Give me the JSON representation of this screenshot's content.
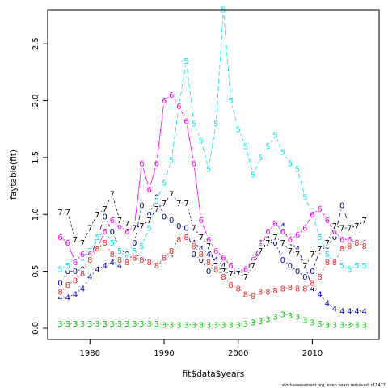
{
  "chart_data": {
    "type": "line",
    "xlabel": "fit$data$years",
    "ylabel": "faytable(fit)",
    "footnote": "stockassessment.org, even years removed, r11427",
    "xlim": [
      1974.3,
      2019
    ],
    "ylim": [
      -0.1,
      2.8
    ],
    "x_ticks": [
      1980,
      1990,
      2000,
      2010
    ],
    "y_ticks": [
      0.0,
      0.5,
      1.0,
      1.5,
      2.0,
      2.5
    ],
    "y_tick_labels": [
      "0.0",
      "0.5",
      "1.0",
      "1.5",
      "2.0",
      "2.5"
    ],
    "x": [
      1976,
      1977,
      1978,
      1979,
      1980,
      1981,
      1982,
      1983,
      1984,
      1985,
      1986,
      1987,
      1988,
      1989,
      1990,
      1991,
      1992,
      1993,
      1994,
      1995,
      1996,
      1997,
      1998,
      1999,
      2000,
      2001,
      2002,
      2003,
      2004,
      2005,
      2006,
      2007,
      2008,
      2009,
      2010,
      2011,
      2012,
      2013,
      2014,
      2015,
      2016,
      2017
    ],
    "series": [
      {
        "name": "0",
        "color": "#00008B",
        "dash": "6,3",
        "values": [
          0.4,
          0.5,
          0.5,
          0.52,
          0.6,
          0.8,
          0.98,
          0.85,
          0.7,
          0.65,
          0.75,
          1.08,
          1.0,
          1.15,
          0.98,
          0.95,
          0.9,
          0.88,
          0.65,
          0.6,
          0.5,
          0.5,
          0.48,
          0.5,
          0.48,
          0.5,
          0.58,
          0.7,
          0.75,
          0.75,
          0.6,
          0.55,
          0.5,
          0.45,
          0.5,
          0.68,
          0.72,
          0.8,
          1.08,
          0.9,
          0.9,
          0.95
        ]
      },
      {
        "name": "3",
        "color": "#00CD00",
        "dash": "2,2",
        "values": [
          0.04,
          0.04,
          0.04,
          0.04,
          0.04,
          0.04,
          0.04,
          0.04,
          0.04,
          0.04,
          0.04,
          0.04,
          0.04,
          0.04,
          0.03,
          0.03,
          0.03,
          0.03,
          0.03,
          0.03,
          0.03,
          0.03,
          0.03,
          0.03,
          0.03,
          0.04,
          0.05,
          0.06,
          0.08,
          0.1,
          0.12,
          0.11,
          0.1,
          0.07,
          0.05,
          0.04,
          0.03,
          0.03,
          0.03,
          0.03,
          0.03,
          0.03
        ]
      },
      {
        "name": "4",
        "color": "#0000CD",
        "dash": "8,2,2,2",
        "values": [
          0.27,
          0.27,
          0.3,
          0.35,
          0.45,
          0.52,
          0.55,
          0.58,
          0.55,
          0.6,
          0.65,
          0.62,
          0.58,
          0.55,
          0.6,
          0.65,
          0.8,
          0.78,
          0.75,
          0.7,
          0.65,
          0.6,
          0.55,
          0.5,
          0.5,
          0.52,
          0.58,
          0.75,
          0.8,
          0.9,
          0.9,
          0.75,
          0.7,
          0.55,
          0.35,
          0.3,
          0.22,
          0.17,
          0.15,
          0.15,
          0.15,
          0.15
        ]
      },
      {
        "name": "5",
        "color": "#00E5EE",
        "dash": "6,3",
        "values": [
          0.52,
          0.55,
          0.58,
          0.62,
          0.68,
          0.8,
          0.85,
          0.75,
          0.68,
          0.62,
          0.68,
          0.72,
          0.88,
          1.12,
          1.28,
          1.48,
          1.95,
          2.35,
          1.8,
          1.65,
          1.4,
          1.8,
          2.8,
          2.0,
          1.75,
          1.6,
          1.35,
          1.5,
          1.6,
          1.7,
          1.55,
          1.45,
          1.4,
          1.15,
          1.0,
          0.8,
          0.65,
          0.58,
          0.55,
          0.52,
          0.55,
          0.55
        ]
      },
      {
        "name": "6",
        "color": "#FF00FF",
        "dash": "",
        "values": [
          0.8,
          0.75,
          0.58,
          0.65,
          0.65,
          0.7,
          0.85,
          0.95,
          0.9,
          0.85,
          0.9,
          1.45,
          1.22,
          1.45,
          2.0,
          2.05,
          1.95,
          1.82,
          1.45,
          0.95,
          0.78,
          0.68,
          0.62,
          0.55,
          0.48,
          0.52,
          0.6,
          0.72,
          0.85,
          0.92,
          0.85,
          0.78,
          0.82,
          0.88,
          1.0,
          1.05,
          0.95,
          0.85,
          0.78,
          0.78,
          0.75,
          0.75
        ]
      },
      {
        "name": "7",
        "color": "#000000",
        "dash": "3,2",
        "values": [
          1.02,
          1.02,
          0.78,
          0.75,
          0.88,
          1.0,
          1.05,
          1.18,
          0.95,
          0.92,
          0.88,
          0.9,
          0.95,
          1.05,
          1.1,
          1.18,
          1.1,
          1.1,
          0.88,
          0.8,
          0.72,
          0.55,
          0.5,
          0.48,
          0.48,
          0.45,
          0.55,
          0.68,
          0.75,
          0.8,
          0.75,
          0.68,
          0.65,
          0.55,
          0.65,
          0.7,
          0.75,
          0.9,
          0.88,
          0.88,
          0.9,
          0.95
        ]
      },
      {
        "name": "8",
        "color": "#EE2C2C",
        "dash": "2,2",
        "values": [
          0.32,
          0.38,
          0.42,
          0.48,
          0.6,
          0.7,
          0.75,
          0.65,
          0.6,
          0.58,
          0.62,
          0.6,
          0.58,
          0.55,
          0.62,
          0.68,
          0.78,
          0.8,
          0.72,
          0.65,
          0.58,
          0.52,
          0.45,
          0.38,
          0.35,
          0.3,
          0.28,
          0.32,
          0.32,
          0.33,
          0.35,
          0.36,
          0.35,
          0.35,
          0.4,
          0.45,
          0.58,
          0.58,
          0.7,
          0.72,
          0.75,
          0.72
        ]
      }
    ]
  }
}
